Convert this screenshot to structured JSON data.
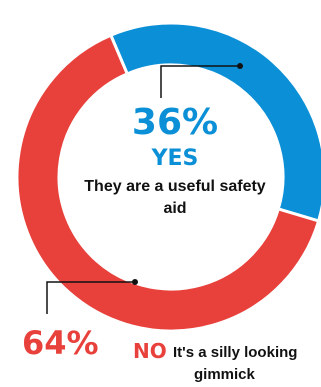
{
  "chart_data": {
    "type": "pie",
    "style": "donut",
    "slices": [
      {
        "label": "YES",
        "value": 36,
        "percent_label": "36%",
        "description": "They are a useful safety aid",
        "color": "#0b8fd6"
      },
      {
        "label": "NO",
        "value": 64,
        "percent_label": "64%",
        "description": "It's a silly looking gimmick",
        "color": "#e8413c"
      }
    ],
    "legend": "none"
  }
}
